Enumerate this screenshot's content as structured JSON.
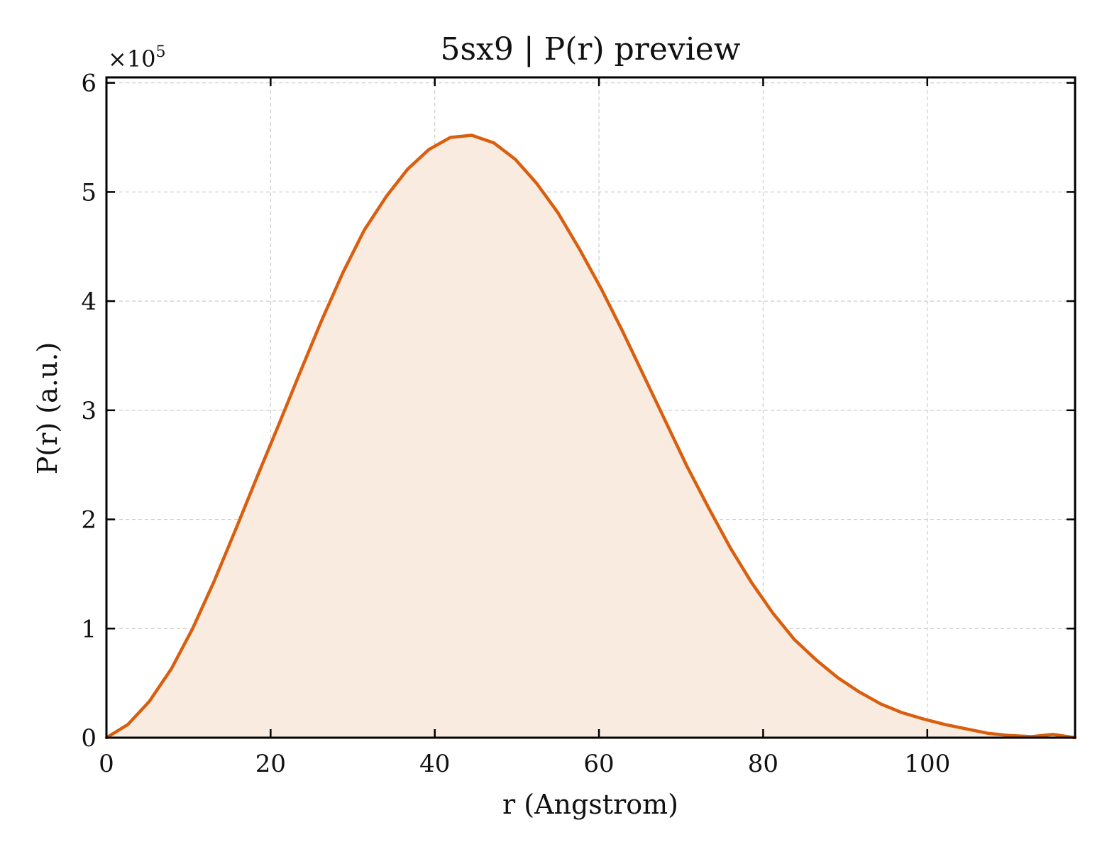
{
  "chart_data": {
    "type": "area",
    "title": "5sx9 | P(r) preview",
    "xlabel": "r (Angstrom)",
    "ylabel": "P(r) (a.u.)",
    "y_multiplier": "×10",
    "y_multiplier_exp": "5",
    "xlim": [
      0,
      118
    ],
    "ylim": [
      0,
      6.05
    ],
    "x_ticks": [
      0,
      20,
      40,
      60,
      80,
      100
    ],
    "y_ticks": [
      0,
      1,
      2,
      3,
      4,
      5,
      6
    ],
    "grid": true,
    "line_color": "#d95f0e",
    "fill_color": "#f9ebe0",
    "series": [
      {
        "x": [
          0,
          2.6,
          5.2,
          7.9,
          10.5,
          13.1,
          15.7,
          18.3,
          21.0,
          23.6,
          26.2,
          28.8,
          31.4,
          34.1,
          36.7,
          39.3,
          41.9,
          44.5,
          47.2,
          49.8,
          52.4,
          55.0,
          57.6,
          60.3,
          62.9,
          65.5,
          68.1,
          70.7,
          73.4,
          76.0,
          78.6,
          81.2,
          83.8,
          86.5,
          89.1,
          91.7,
          94.3,
          96.9,
          99.6,
          102.2,
          104.8,
          107.4,
          110.0,
          112.7,
          115.3,
          118.0
        ],
        "values": [
          0.0,
          0.12,
          0.33,
          0.63,
          1.0,
          1.43,
          1.9,
          2.38,
          2.87,
          3.35,
          3.82,
          4.26,
          4.65,
          4.96,
          5.21,
          5.39,
          5.5,
          5.52,
          5.45,
          5.3,
          5.08,
          4.81,
          4.48,
          4.11,
          3.72,
          3.31,
          2.9,
          2.49,
          2.1,
          1.74,
          1.42,
          1.14,
          0.9,
          0.71,
          0.55,
          0.42,
          0.31,
          0.23,
          0.17,
          0.12,
          0.08,
          0.04,
          0.02,
          0.01,
          0.03,
          0.0
        ]
      }
    ]
  }
}
